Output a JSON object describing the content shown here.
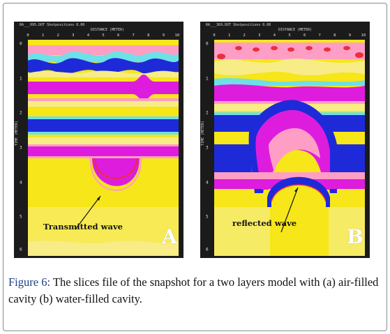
{
  "figure": {
    "panel_a": {
      "header": "RA___095.DOT   Shotpositions   0.00",
      "distance_label": "DISTANCE (METER)",
      "time_label": "TIME (METER)",
      "x_ticks": [
        "0",
        "1",
        "2",
        "3",
        "4",
        "5",
        "6",
        "7",
        "8",
        "9",
        "10"
      ],
      "y_ticks": [
        "0",
        "1",
        "2",
        "3",
        "4",
        "5",
        "6"
      ],
      "annotation": "Transmitted wave",
      "letter": "A"
    },
    "panel_b": {
      "header": "RA___369.DOT   Shotpositions   0.00",
      "distance_label": "DISTANCE (METER)",
      "time_label": "TIME (METER)",
      "x_ticks": [
        "0",
        "1",
        "2",
        "3",
        "4",
        "5",
        "6",
        "7",
        "8",
        "9",
        "10"
      ],
      "y_ticks": [
        "0",
        "1",
        "2",
        "3",
        "4",
        "5",
        "6"
      ],
      "annotation": "reflected wave",
      "letter": "B"
    },
    "colors": {
      "yellow": "#f6e61a",
      "pale_yellow": "#f7ec86",
      "magenta": "#de1cde",
      "blue": "#1e2ad8",
      "pink": "#ff9ec4",
      "red": "#ee2c3c",
      "cyan": "#6ee0e6",
      "green": "#4cd24c",
      "caption_blue": "#1f3f88"
    }
  },
  "caption": {
    "label": "Figure 6:",
    "text": " The slices file of the snapshot for a two layers model with (a) air-filled cavity (b) water-filled cavity."
  }
}
